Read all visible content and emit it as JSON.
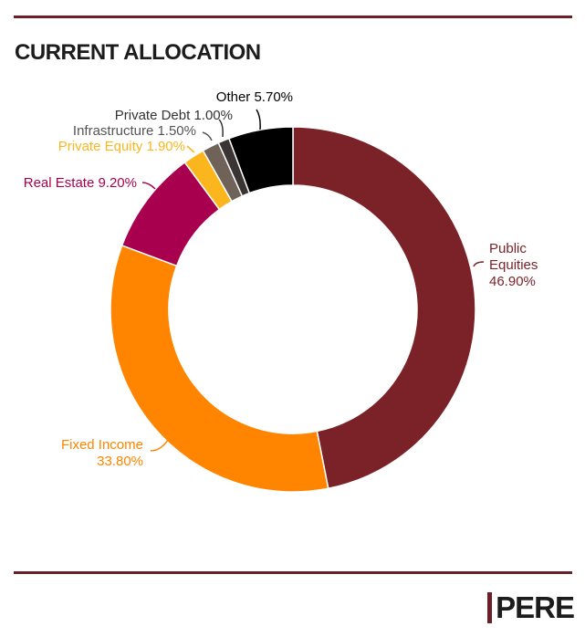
{
  "page": {
    "title": "CURRENT ALLOCATION",
    "logo": "PERE"
  },
  "chart_data": {
    "type": "pie",
    "variant": "donut",
    "title": "CURRENT ALLOCATION",
    "slices": [
      {
        "name": "Public Equities",
        "value": 46.9,
        "label": "Public Equities 46.90%",
        "color": "#7b2228"
      },
      {
        "name": "Fixed Income",
        "value": 33.8,
        "label": "Fixed Income 33.80%",
        "color": "#ff8400"
      },
      {
        "name": "Real Estate",
        "value": 9.2,
        "label": "Real Estate 9.20%",
        "color": "#a8004e"
      },
      {
        "name": "Private Equity",
        "value": 1.9,
        "label": "Private Equity 1.90%",
        "color": "#fbb61e"
      },
      {
        "name": "Infrastructure",
        "value": 1.5,
        "label": "Infrastructure 1.50%",
        "color": "#6e6259"
      },
      {
        "name": "Private Debt",
        "value": 1.0,
        "label": "Private Debt 1.00%",
        "color": "#3a3432"
      },
      {
        "name": "Other",
        "value": 5.7,
        "label": "Other 5.70%",
        "color": "#000000"
      }
    ],
    "label_colors": {
      "Public Equities": "#7b2228",
      "Fixed Income": "#ff8400",
      "Real Estate": "#a8004e",
      "Private Equity": "#fbb61e",
      "Infrastructure": "#555555",
      "Private Debt": "#333333",
      "Other": "#000000"
    },
    "labels": {
      "public_equities": [
        "Public",
        "Equities",
        "46.90%"
      ],
      "fixed_income": [
        "Fixed Income",
        "33.80%"
      ],
      "real_estate": "Real Estate 9.20%",
      "private_equity": "Private Equity 1.90%",
      "infrastructure": "Infrastructure 1.50%",
      "private_debt": "Private Debt 1.00%",
      "other": "Other 5.70%"
    }
  }
}
